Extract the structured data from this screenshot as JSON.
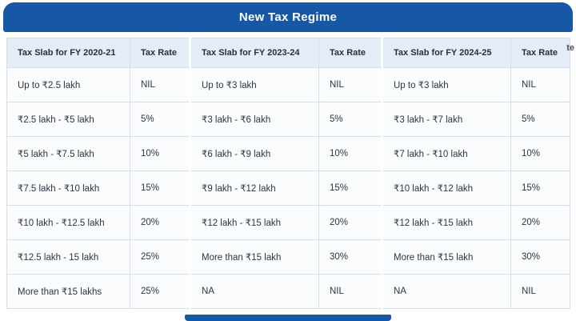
{
  "banner": {
    "title": "New Tax Regime"
  },
  "watermark": "te",
  "colors": {
    "banner_blue": "#1657A6",
    "header_bg": "#e4ecf8",
    "row_bg": "#fafcfe",
    "border": "#d3dfef",
    "text": "#2e3542",
    "title_text": "#ffffff"
  },
  "chart_data": {
    "type": "table",
    "title": "New Tax Regime",
    "columns": [
      "Tax Slab for FY 2020-21",
      "Tax Rate",
      "Tax Slab for FY 2023-24",
      "Tax Rate",
      "Tax Slab for FY 2024-25",
      "Tax Rate"
    ],
    "rows": [
      [
        "Up to ₹2.5 lakh",
        "NIL",
        "Up to ₹3 lakh",
        "NIL",
        "Up to ₹3 lakh",
        "NIL"
      ],
      [
        "₹2.5 lakh - ₹5 lakh",
        "5%",
        "₹3 lakh - ₹6 lakh",
        "5%",
        "₹3 lakh - ₹7 lakh",
        "5%"
      ],
      [
        "₹5 lakh - ₹7.5 lakh",
        "10%",
        "₹6 lakh - ₹9 lakh",
        "10%",
        "₹7 lakh - ₹10 lakh",
        "10%"
      ],
      [
        "₹7.5 lakh - ₹10 lakh",
        "15%",
        "₹9 lakh - ₹12 lakh",
        "15%",
        "₹10 lakh - ₹12 lakh",
        "15%"
      ],
      [
        "₹10 lakh - ₹12.5 lakh",
        "20%",
        "₹12 lakh - ₹15 lakh",
        "20%",
        "₹12 lakh - ₹15 lakh",
        "20%"
      ],
      [
        "₹12.5 lakh - 15 lakh",
        "25%",
        "More than ₹15 lakh",
        "30%",
        "More than ₹15 lakh",
        "30%"
      ],
      [
        "More than ₹15 lakhs",
        "25%",
        "NA",
        "NIL",
        "NA",
        "NIL"
      ]
    ]
  }
}
